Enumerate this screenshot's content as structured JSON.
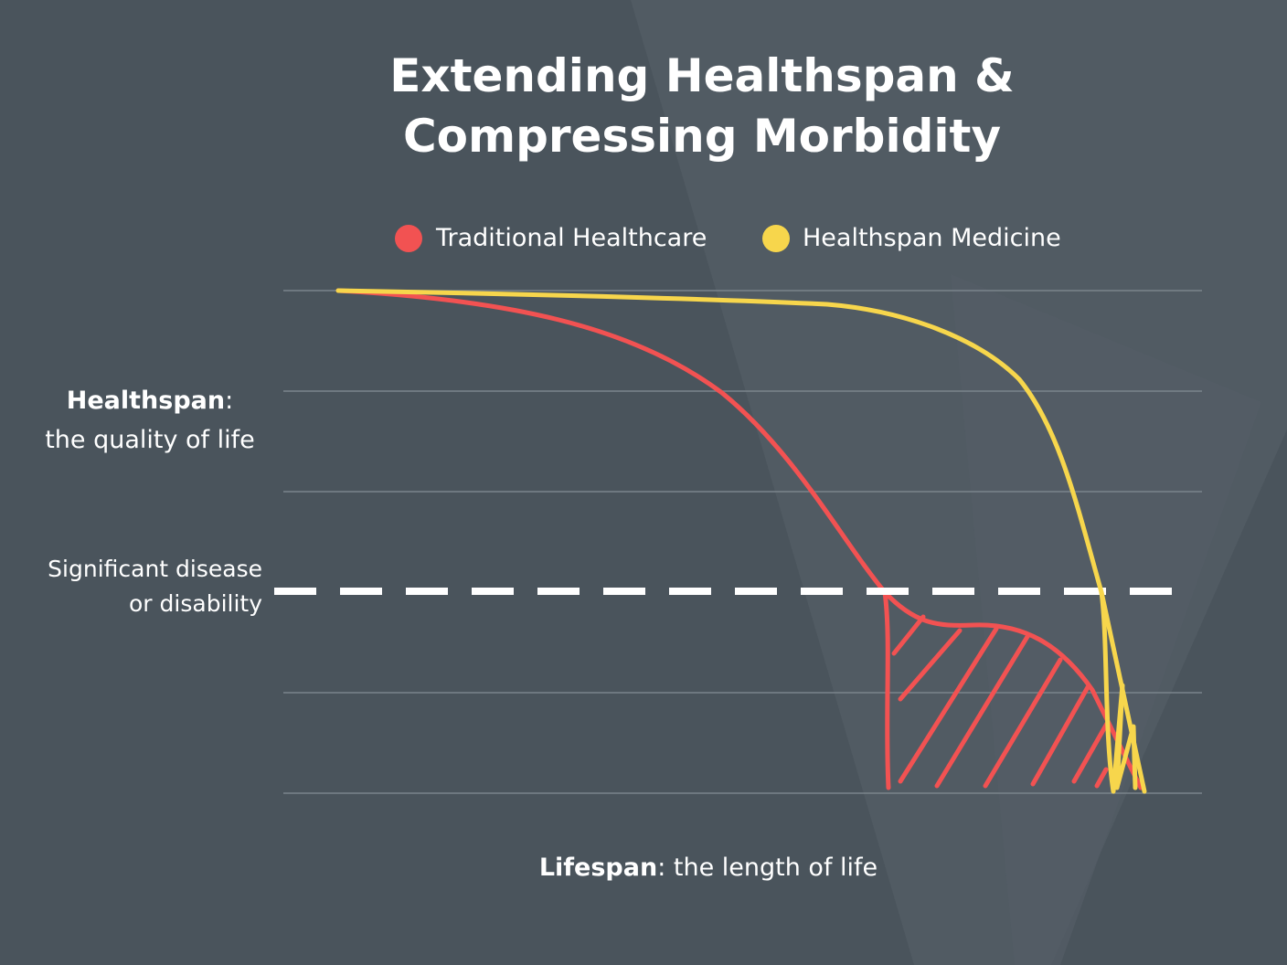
{
  "title": [
    "Extending Healthspan &",
    "Compressing Morbidity"
  ],
  "legend": [
    "Traditional Healthcare",
    "Healthspan Medicine"
  ],
  "y_label": {
    "term": "Healthspan",
    "suffix": ":",
    "line2": "the quality of life"
  },
  "threshold_label": [
    "Significant disease",
    "or disability"
  ],
  "x_label": {
    "term": "Lifespan",
    "rest": ": the length of life"
  }
}
